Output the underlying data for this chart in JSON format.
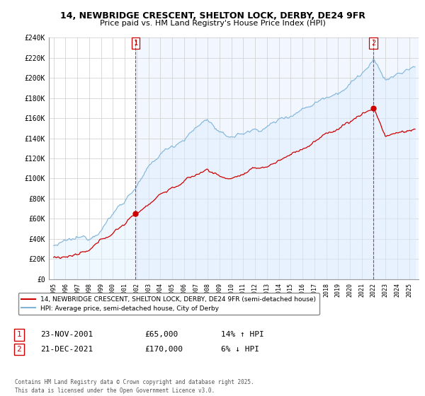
{
  "title": "14, NEWBRIDGE CRESCENT, SHELTON LOCK, DERBY, DE24 9FR",
  "subtitle": "Price paid vs. HM Land Registry's House Price Index (HPI)",
  "legend_label1": "14, NEWBRIDGE CRESCENT, SHELTON LOCK, DERBY, DE24 9FR (semi-detached house)",
  "legend_label2": "HPI: Average price, semi-detached house, City of Derby",
  "annotation1_date": "23-NOV-2001",
  "annotation1_price": "£65,000",
  "annotation1_hpi": "14% ↑ HPI",
  "annotation2_date": "21-DEC-2021",
  "annotation2_price": "£170,000",
  "annotation2_hpi": "6% ↓ HPI",
  "footer": "Contains HM Land Registry data © Crown copyright and database right 2025.\nThis data is licensed under the Open Government Licence v3.0.",
  "ylim": [
    0,
    240000
  ],
  "yticks": [
    0,
    20000,
    40000,
    60000,
    80000,
    100000,
    120000,
    140000,
    160000,
    180000,
    200000,
    220000,
    240000
  ],
  "ytick_labels": [
    "£0",
    "£20K",
    "£40K",
    "£60K",
    "£80K",
    "£100K",
    "£120K",
    "£140K",
    "£160K",
    "£180K",
    "£200K",
    "£220K",
    "£240K"
  ],
  "line1_color": "#cc0000",
  "line2_color": "#7fb4d8",
  "fill2_color": "#ddeeff",
  "vline_color": "#cc0000",
  "marker_color": "#cc0000",
  "sale1_year": 2001.92,
  "sale1_price": 65000,
  "sale2_year": 2021.97,
  "sale2_price": 170000,
  "background_color": "#ffffff",
  "grid_color": "#cccccc",
  "chart_bg": "#f0f4ff"
}
